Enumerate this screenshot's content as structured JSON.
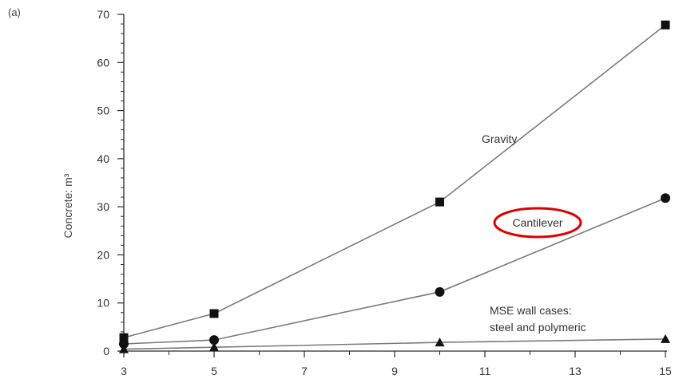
{
  "panel_label": "(a)",
  "chart_data": {
    "type": "line",
    "ylabel": "Concrete: m³",
    "xlabel": "",
    "xlim": [
      3,
      15
    ],
    "ylim": [
      0,
      70
    ],
    "x_ticks": [
      "3",
      "5",
      "7",
      "9",
      "11",
      "13",
      "15"
    ],
    "y_ticks": [
      "0",
      "10",
      "20",
      "30",
      "40",
      "50",
      "60",
      "70"
    ],
    "grid": false,
    "series": [
      {
        "label": "Gravity",
        "marker": "square",
        "x": [
          3,
          5,
          10,
          15
        ],
        "y": [
          2.8,
          7.8,
          31.0,
          67.8
        ]
      },
      {
        "label": "Cantilever",
        "marker": "circle",
        "x": [
          3,
          5,
          10,
          15
        ],
        "y": [
          1.5,
          2.3,
          12.3,
          31.8
        ]
      },
      {
        "label": "MSE wall cases: steel and polymeric",
        "marker": "triangle",
        "x": [
          3,
          5,
          10,
          15
        ],
        "y": [
          0.4,
          0.8,
          1.8,
          2.5
        ]
      }
    ],
    "annotations": {
      "gravity": "Gravity",
      "cantilever": "Cantilever",
      "mse_line1": "MSE wall cases:",
      "mse_line2": "steel and polymeric"
    },
    "highlight_color": "#e00000"
  }
}
